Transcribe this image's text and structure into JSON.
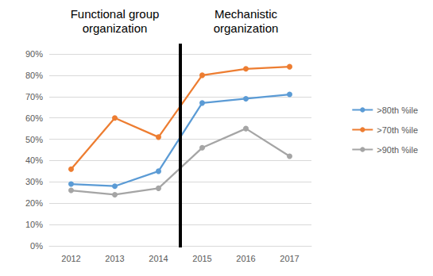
{
  "chart_data": {
    "type": "line",
    "categories": [
      "2012",
      "2013",
      "2014",
      "2015",
      "2016",
      "2017"
    ],
    "series": [
      {
        "name": ">80th %ile",
        "color": "#5b9bd5",
        "values": [
          29,
          28,
          35,
          67,
          69,
          71
        ]
      },
      {
        "name": ">70th %ile",
        "color": "#ed7d31",
        "values": [
          36,
          60,
          51,
          80,
          83,
          84
        ]
      },
      {
        "name": ">90th %ile",
        "color": "#a5a5a5",
        "values": [
          26,
          24,
          27,
          46,
          55,
          42
        ]
      }
    ],
    "ylim": [
      0,
      90
    ],
    "yticks": [
      {
        "value": 0,
        "label": "0%"
      },
      {
        "value": 10,
        "label": "10%"
      },
      {
        "value": 20,
        "label": "20%"
      },
      {
        "value": 30,
        "label": "30%"
      },
      {
        "value": 40,
        "label": "40%"
      },
      {
        "value": 50,
        "label": "50%"
      },
      {
        "value": 60,
        "label": "60%"
      },
      {
        "value": 70,
        "label": "70%"
      },
      {
        "value": 80,
        "label": "80%"
      },
      {
        "value": 90,
        "label": "90%"
      }
    ],
    "annotations": [
      {
        "text": "Functional group\norganization"
      },
      {
        "text": "Mechanistic\norganization"
      }
    ],
    "grid": true,
    "legend": "right",
    "marker": "circle"
  }
}
